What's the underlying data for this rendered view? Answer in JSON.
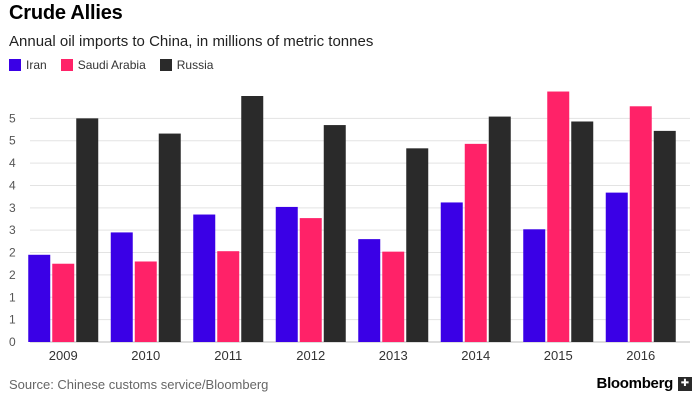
{
  "chart_data": {
    "type": "bar",
    "title": "Crude Allies",
    "subtitle": "Annual oil imports to China, in millions of metric tonnes",
    "categories": [
      "2009",
      "2010",
      "2011",
      "2012",
      "2013",
      "2014",
      "2015",
      "2016"
    ],
    "series": [
      {
        "name": "Iran",
        "color": "#3a00e6",
        "values": [
          1.95,
          2.45,
          2.85,
          3.02,
          2.3,
          3.12,
          2.52,
          3.34
        ]
      },
      {
        "name": "Saudi Arabia",
        "color": "#ff2268",
        "values": [
          1.75,
          1.8,
          2.03,
          2.77,
          2.02,
          4.43,
          5.6,
          5.27
        ]
      },
      {
        "name": "Russia",
        "color": "#2a2a2a",
        "values": [
          5.0,
          4.66,
          5.5,
          4.85,
          4.33,
          5.04,
          4.93,
          4.72
        ]
      }
    ],
    "ylim": [
      0,
      5.5
    ],
    "y_ticks": [
      0,
      0.5,
      1,
      1.5,
      2,
      2.5,
      3,
      3.5,
      4,
      4.5,
      5
    ],
    "y_tick_labels": [
      "0",
      "1",
      "1",
      "2",
      "2",
      "3",
      "3",
      "4",
      "4",
      "5",
      "5"
    ],
    "grid": true,
    "legend_position": "top-left"
  },
  "footer": {
    "source": "Source: Chinese customs service/Bloomberg",
    "brand": "Bloomberg"
  }
}
